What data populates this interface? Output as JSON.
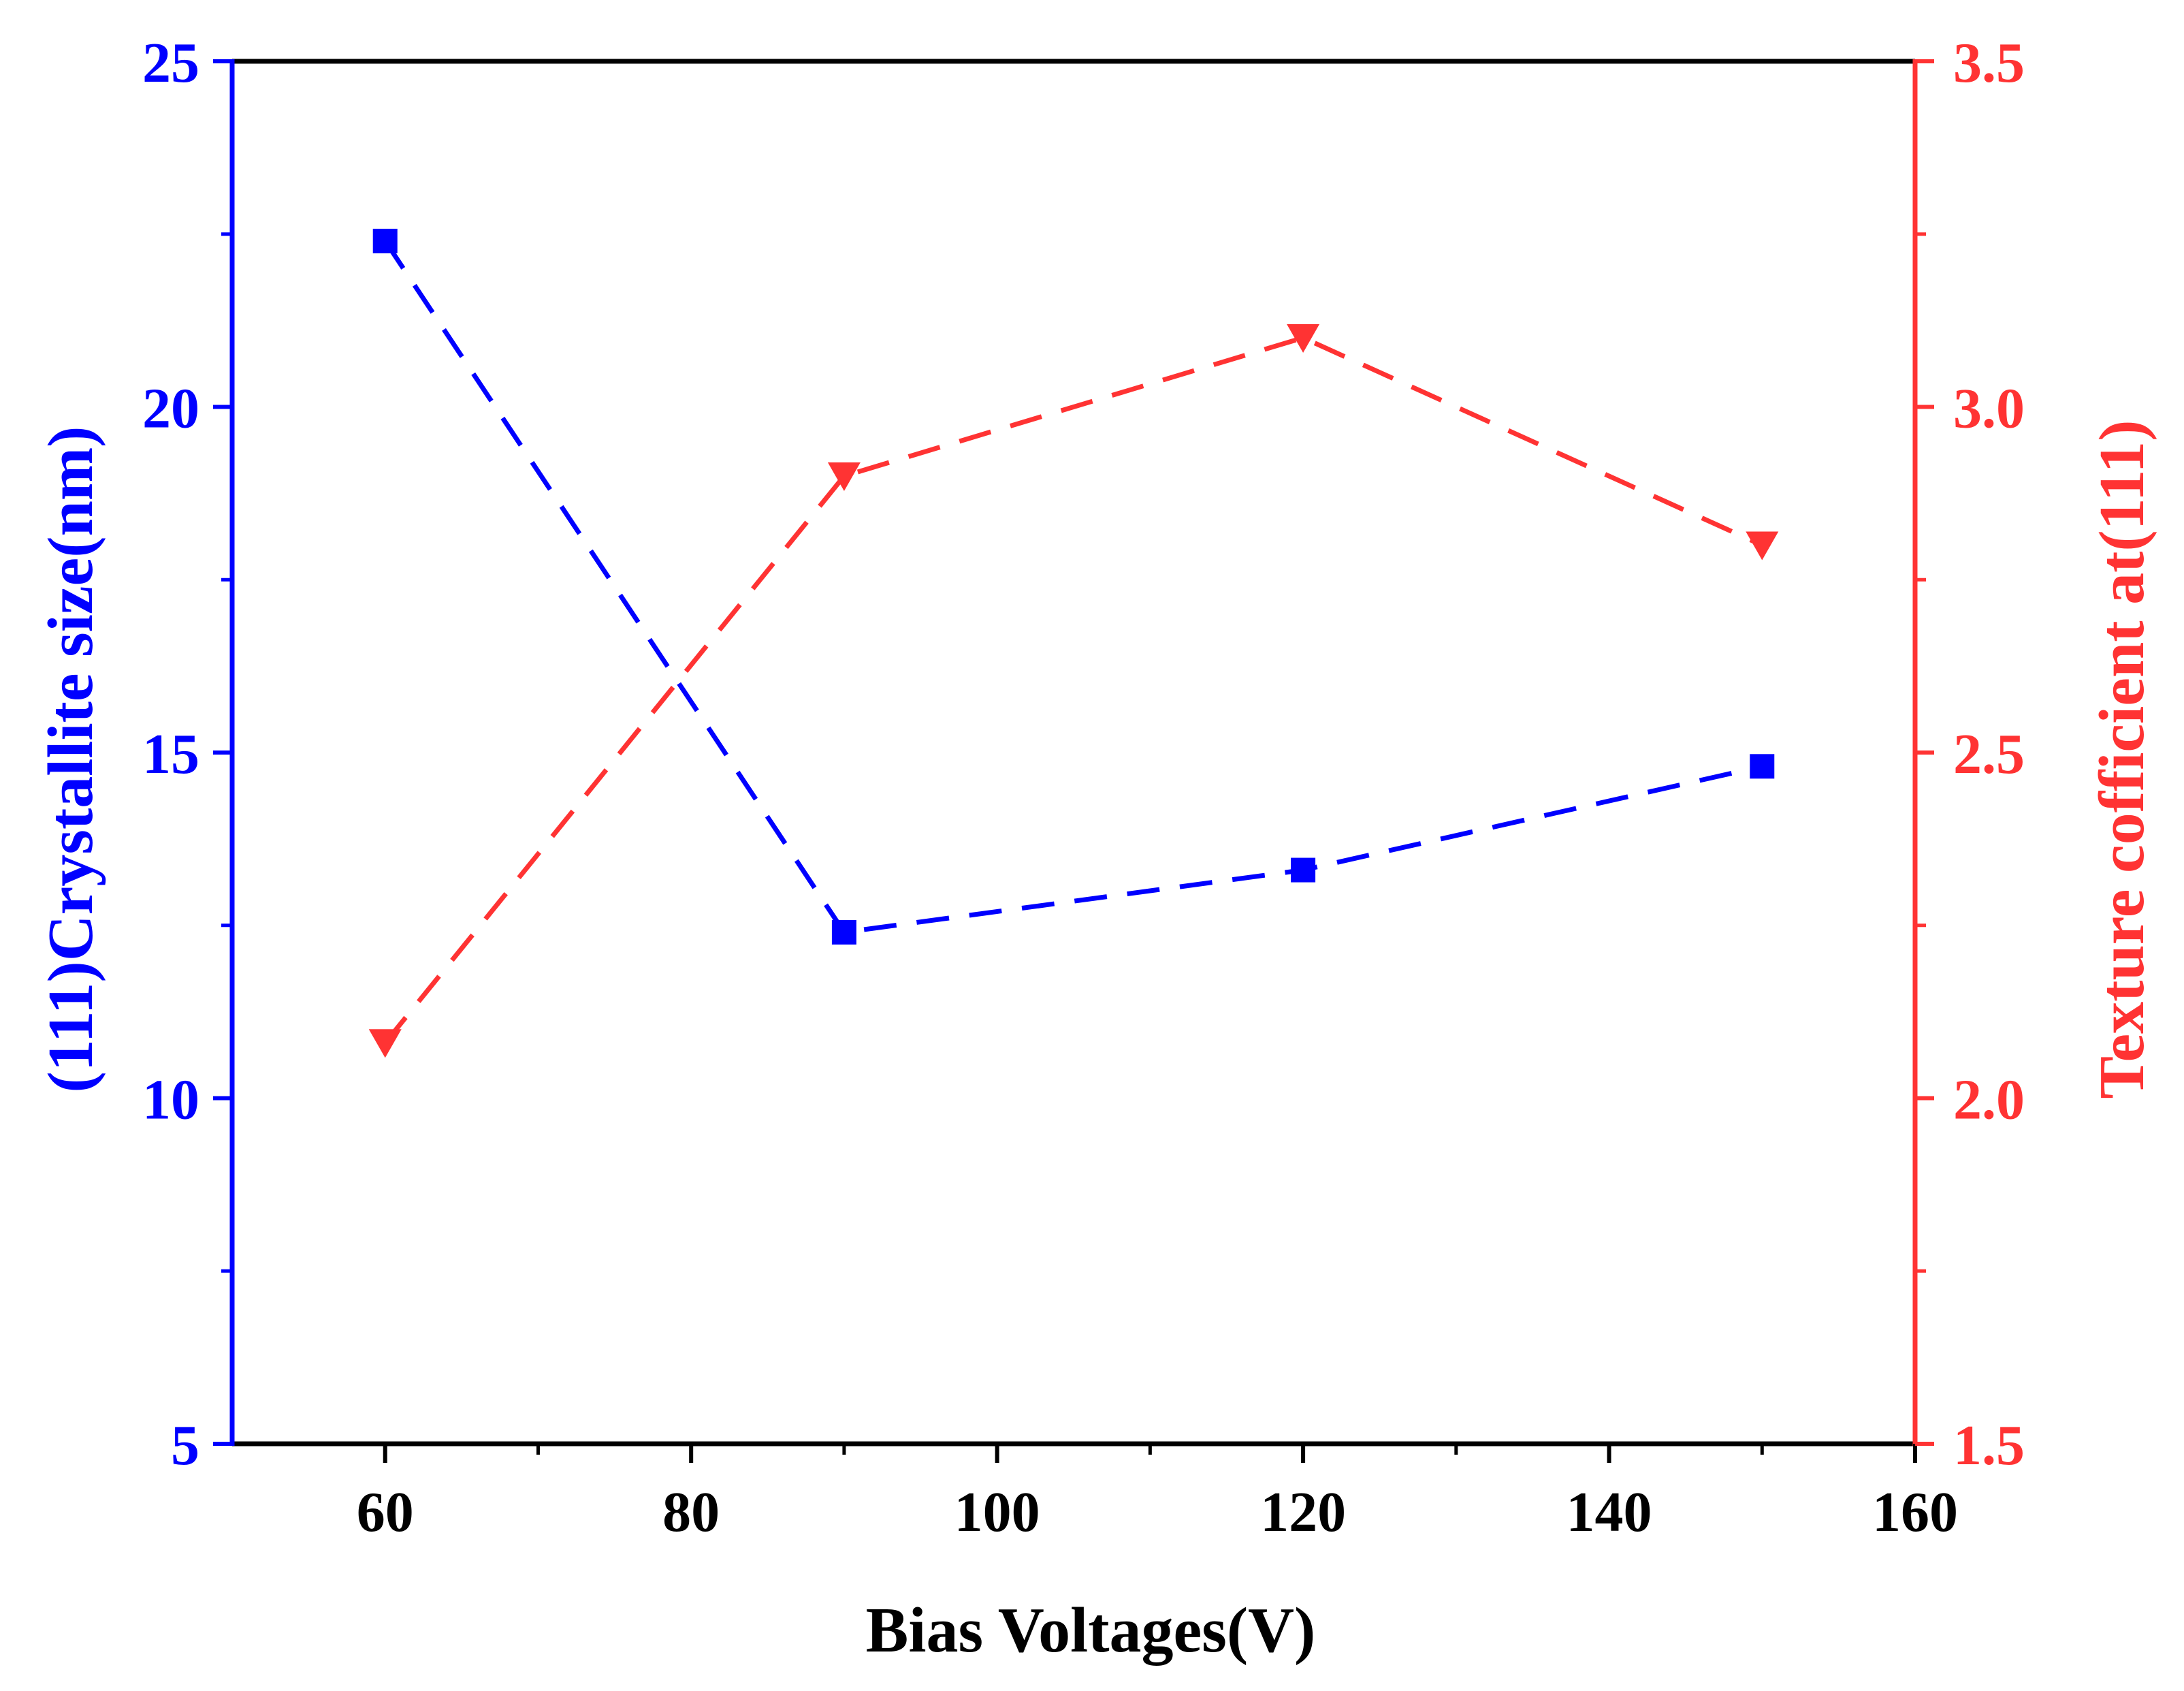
{
  "chart_data": {
    "type": "line",
    "title": "",
    "xlabel": "Bias Voltages(V)",
    "ylabel_left": "(111)Crystallite size(nm)",
    "ylabel_right": "Texture cofficient at(111)",
    "xlim": [
      50,
      160
    ],
    "ylim_left": [
      5,
      25
    ],
    "ylim_right": [
      1.5,
      3.5
    ],
    "x_ticks": [
      60,
      80,
      100,
      120,
      140,
      160
    ],
    "x_tick_labels": [
      "60",
      "80",
      "100",
      "120",
      "140",
      "160"
    ],
    "y_left_ticks": [
      5,
      10,
      15,
      20,
      25
    ],
    "y_left_tick_labels": [
      "5",
      "10",
      "15",
      "20",
      "25"
    ],
    "y_right_ticks": [
      1.5,
      2.0,
      2.5,
      3.0,
      3.5
    ],
    "y_right_tick_labels": [
      "1.5",
      "2.0",
      "2.5",
      "3.0",
      "3.5"
    ],
    "grid": false,
    "x": [
      60,
      90,
      120,
      150
    ],
    "series": [
      {
        "name": "(111)Crystallite size(nm)",
        "axis": "left",
        "marker": "square",
        "color": "#0000ff",
        "values": [
          22.4,
          12.4,
          13.3,
          14.8
        ]
      },
      {
        "name": "Texture cofficient at(111)",
        "axis": "right",
        "marker": "triangle-down",
        "color": "#ff3333",
        "values": [
          2.08,
          2.9,
          3.1,
          2.8
        ]
      }
    ]
  },
  "colors": {
    "left_axis": "#0000ff",
    "right_axis": "#ff3333",
    "frame": "#000000"
  }
}
